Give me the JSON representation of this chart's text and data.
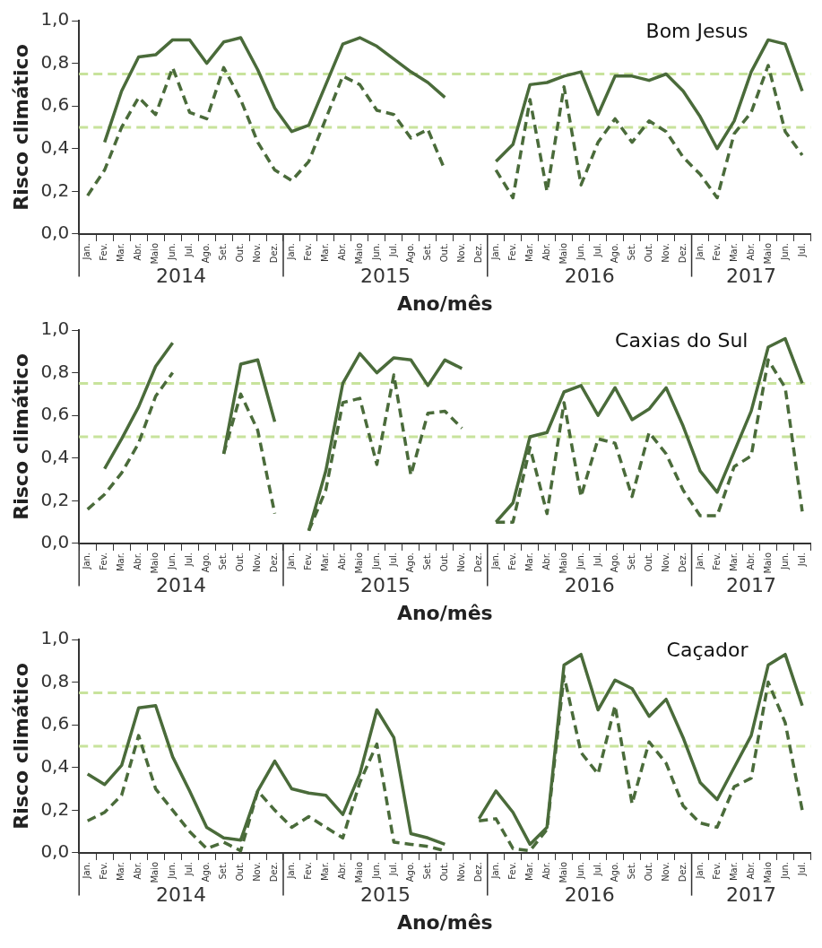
{
  "chart_data": [
    {
      "type": "line",
      "title": "Bom Jesus",
      "xlabel": "Ano/mês",
      "ylabel": "Risco climático",
      "categories": [
        "Jan.",
        "Fev.",
        "Mar.",
        "Abr.",
        "Maio",
        "Jun.",
        "Jul.",
        "Ago.",
        "Set.",
        "Out.",
        "Nov.",
        "Dez.",
        "Jan.",
        "Fev.",
        "Mar.",
        "Abr.",
        "Maio",
        "Jun.",
        "Jul.",
        "Ago.",
        "Set.",
        "Out.",
        "Nov.",
        "Dez.",
        "Jan.",
        "Fev.",
        "Mar.",
        "Abr.",
        "Maio",
        "Jun.",
        "Jul.",
        "Ago.",
        "Set.",
        "Out.",
        "Nov.",
        "Dez.",
        "Jan.",
        "Fev.",
        "Mar.",
        "Abr.",
        "Maio",
        "Jun.",
        "Jul."
      ],
      "annotations": [
        "2014",
        "2015",
        "2016",
        "2017"
      ],
      "ylim": [
        0,
        1
      ],
      "yticks": [
        {
          "value": 0,
          "label": "0,0"
        },
        {
          "value": 0.2,
          "label": "0,2"
        },
        {
          "value": 0.4,
          "label": "0,4"
        },
        {
          "value": 0.6,
          "label": "0,6"
        },
        {
          "value": 0.8,
          "label": "0,8"
        },
        {
          "value": 1,
          "label": "1,0"
        }
      ],
      "marker": "none",
      "ref_lines": [
        {
          "axis": "y",
          "value": 0.5,
          "label": null,
          "color": "#c8e39c",
          "line_style": "dashed"
        },
        {
          "axis": "y",
          "value": 0.75,
          "label": null,
          "color": "#c8e39c",
          "line_style": "dashed"
        }
      ],
      "series": [
        {
          "color": "#4a6b3a",
          "line_style": "solid",
          "values": [
            null,
            0.43,
            0.67,
            0.83,
            0.84,
            0.91,
            0.91,
            0.8,
            0.9,
            0.92,
            0.77,
            0.59,
            0.48,
            0.51,
            0.7,
            0.89,
            0.92,
            0.88,
            0.82,
            0.76,
            0.71,
            0.64,
            null,
            null,
            0.34,
            0.42,
            0.7,
            0.71,
            0.74,
            0.76,
            0.56,
            0.74,
            0.74,
            0.72,
            0.75,
            0.67,
            0.55,
            0.4,
            0.53,
            0.76,
            0.91,
            0.89,
            0.67
          ]
        },
        {
          "color": "#4a6b3a",
          "line_style": "dashed",
          "values": [
            0.18,
            0.3,
            0.5,
            0.64,
            0.56,
            0.78,
            0.57,
            0.54,
            0.78,
            0.63,
            0.43,
            0.3,
            0.25,
            0.34,
            0.54,
            0.74,
            0.7,
            0.58,
            0.56,
            0.45,
            0.49,
            0.3,
            null,
            null,
            0.3,
            0.17,
            0.63,
            0.2,
            0.69,
            0.23,
            0.43,
            0.54,
            0.43,
            0.53,
            0.48,
            0.36,
            0.28,
            0.17,
            0.47,
            0.57,
            0.79,
            0.48,
            0.37
          ]
        }
      ]
    },
    {
      "type": "line",
      "title": "Caxias do Sul",
      "xlabel": "Ano/mês",
      "ylabel": "Risco climático",
      "categories": [
        "Jan.",
        "Fev.",
        "Mar.",
        "Abr.",
        "Maio",
        "Jun.",
        "Jul.",
        "Ago.",
        "Set.",
        "Out.",
        "Nov.",
        "Dez.",
        "Jan.",
        "Fev.",
        "Mar.",
        "Abr.",
        "Maio",
        "Jun.",
        "Jul.",
        "Ago.",
        "Set.",
        "Out.",
        "Nov.",
        "Dez.",
        "Jan.",
        "Fev.",
        "Mar.",
        "Abr.",
        "Maio",
        "Jun.",
        "Jul.",
        "Ago.",
        "Set.",
        "Out.",
        "Nov.",
        "Dez.",
        "Jan.",
        "Fev.",
        "Mar.",
        "Abr.",
        "Maio",
        "Jun.",
        "Jul."
      ],
      "annotations": [
        "2014",
        "2015",
        "2016",
        "2017"
      ],
      "ylim": [
        0,
        1
      ],
      "yticks": [
        {
          "value": 0,
          "label": "0,0"
        },
        {
          "value": 0.2,
          "label": "0,2"
        },
        {
          "value": 0.4,
          "label": "0,4"
        },
        {
          "value": 0.6,
          "label": "0,6"
        },
        {
          "value": 0.8,
          "label": "0,8"
        },
        {
          "value": 1,
          "label": "1,0"
        }
      ],
      "marker": "none",
      "ref_lines": [
        {
          "axis": "y",
          "value": 0.5,
          "label": null,
          "color": "#c8e39c",
          "line_style": "dashed"
        },
        {
          "axis": "y",
          "value": 0.75,
          "label": null,
          "color": "#c8e39c",
          "line_style": "dashed"
        }
      ],
      "series": [
        {
          "color": "#4a6b3a",
          "line_style": "solid",
          "values": [
            null,
            0.35,
            0.49,
            0.64,
            0.83,
            0.94,
            null,
            null,
            0.42,
            0.84,
            0.86,
            0.57,
            null,
            0.06,
            0.34,
            0.75,
            0.89,
            0.8,
            0.87,
            0.86,
            0.74,
            0.86,
            0.82,
            null,
            0.1,
            0.19,
            0.5,
            0.52,
            0.71,
            0.74,
            0.6,
            0.73,
            0.58,
            0.63,
            0.73,
            0.55,
            0.34,
            0.24,
            0.43,
            0.62,
            0.92,
            0.96,
            0.75
          ]
        },
        {
          "color": "#4a6b3a",
          "line_style": "dashed",
          "values": [
            0.16,
            0.23,
            0.33,
            0.47,
            0.69,
            0.8,
            null,
            null,
            0.42,
            0.7,
            0.53,
            0.14,
            null,
            0.06,
            0.25,
            0.66,
            0.68,
            0.37,
            0.79,
            0.32,
            0.61,
            0.62,
            0.54,
            null,
            0.1,
            0.1,
            0.45,
            0.14,
            0.66,
            0.22,
            0.49,
            0.47,
            0.22,
            0.52,
            0.42,
            0.25,
            0.13,
            0.13,
            0.36,
            0.41,
            0.86,
            0.73,
            0.15
          ]
        }
      ]
    },
    {
      "type": "line",
      "title": "Caçador",
      "xlabel": "Ano/mês",
      "ylabel": "Risco climático",
      "categories": [
        "Jan.",
        "Fev.",
        "Mar.",
        "Abr.",
        "Maio",
        "Jun.",
        "Jul.",
        "Ago.",
        "Set.",
        "Out.",
        "Nov.",
        "Dez.",
        "Jan.",
        "Fev.",
        "Mar.",
        "Abr.",
        "Maio",
        "Jun.",
        "Jul.",
        "Ago.",
        "Set.",
        "Out.",
        "Nov.",
        "Dez.",
        "Jan.",
        "Fev.",
        "Mar.",
        "Abr.",
        "Maio",
        "Jun.",
        "Jul.",
        "Ago.",
        "Set.",
        "Out.",
        "Nov.",
        "Dez.",
        "Jan.",
        "Fev.",
        "Mar.",
        "Abr.",
        "Maio",
        "Jun.",
        "Jul."
      ],
      "annotations": [
        "2014",
        "2015",
        "2016",
        "2017"
      ],
      "ylim": [
        0,
        1
      ],
      "yticks": [
        {
          "value": 0,
          "label": "0,0"
        },
        {
          "value": 0.2,
          "label": "0,2"
        },
        {
          "value": 0.4,
          "label": "0,4"
        },
        {
          "value": 0.6,
          "label": "0,6"
        },
        {
          "value": 0.8,
          "label": "0,8"
        },
        {
          "value": 1,
          "label": "1,0"
        }
      ],
      "marker": "none",
      "ref_lines": [
        {
          "axis": "y",
          "value": 0.5,
          "label": null,
          "color": "#c8e39c",
          "line_style": "dashed"
        },
        {
          "axis": "y",
          "value": 0.75,
          "label": null,
          "color": "#c8e39c",
          "line_style": "dashed"
        }
      ],
      "series": [
        {
          "color": "#4a6b3a",
          "line_style": "solid",
          "values": [
            0.37,
            0.32,
            0.41,
            0.68,
            0.69,
            0.45,
            0.29,
            0.12,
            0.07,
            0.06,
            0.29,
            0.43,
            0.3,
            0.28,
            0.27,
            0.18,
            0.37,
            0.67,
            0.54,
            0.09,
            0.07,
            0.04,
            null,
            0.16,
            0.29,
            0.19,
            0.04,
            0.12,
            0.88,
            0.93,
            0.67,
            0.81,
            0.77,
            0.64,
            0.72,
            0.54,
            0.33,
            0.25,
            0.4,
            0.55,
            0.88,
            0.93,
            0.69
          ]
        },
        {
          "color": "#4a6b3a",
          "line_style": "dashed",
          "values": [
            0.15,
            0.19,
            0.27,
            0.55,
            0.3,
            0.2,
            0.1,
            0.02,
            0.05,
            0.01,
            0.29,
            0.2,
            0.12,
            0.17,
            0.12,
            0.07,
            0.33,
            0.51,
            0.05,
            0.04,
            0.03,
            0.01,
            null,
            0.15,
            0.16,
            0.02,
            0.01,
            0.11,
            0.83,
            0.47,
            0.37,
            0.69,
            0.23,
            0.52,
            0.42,
            0.22,
            0.14,
            0.12,
            0.31,
            0.35,
            0.8,
            0.61,
            0.2
          ]
        }
      ]
    }
  ]
}
